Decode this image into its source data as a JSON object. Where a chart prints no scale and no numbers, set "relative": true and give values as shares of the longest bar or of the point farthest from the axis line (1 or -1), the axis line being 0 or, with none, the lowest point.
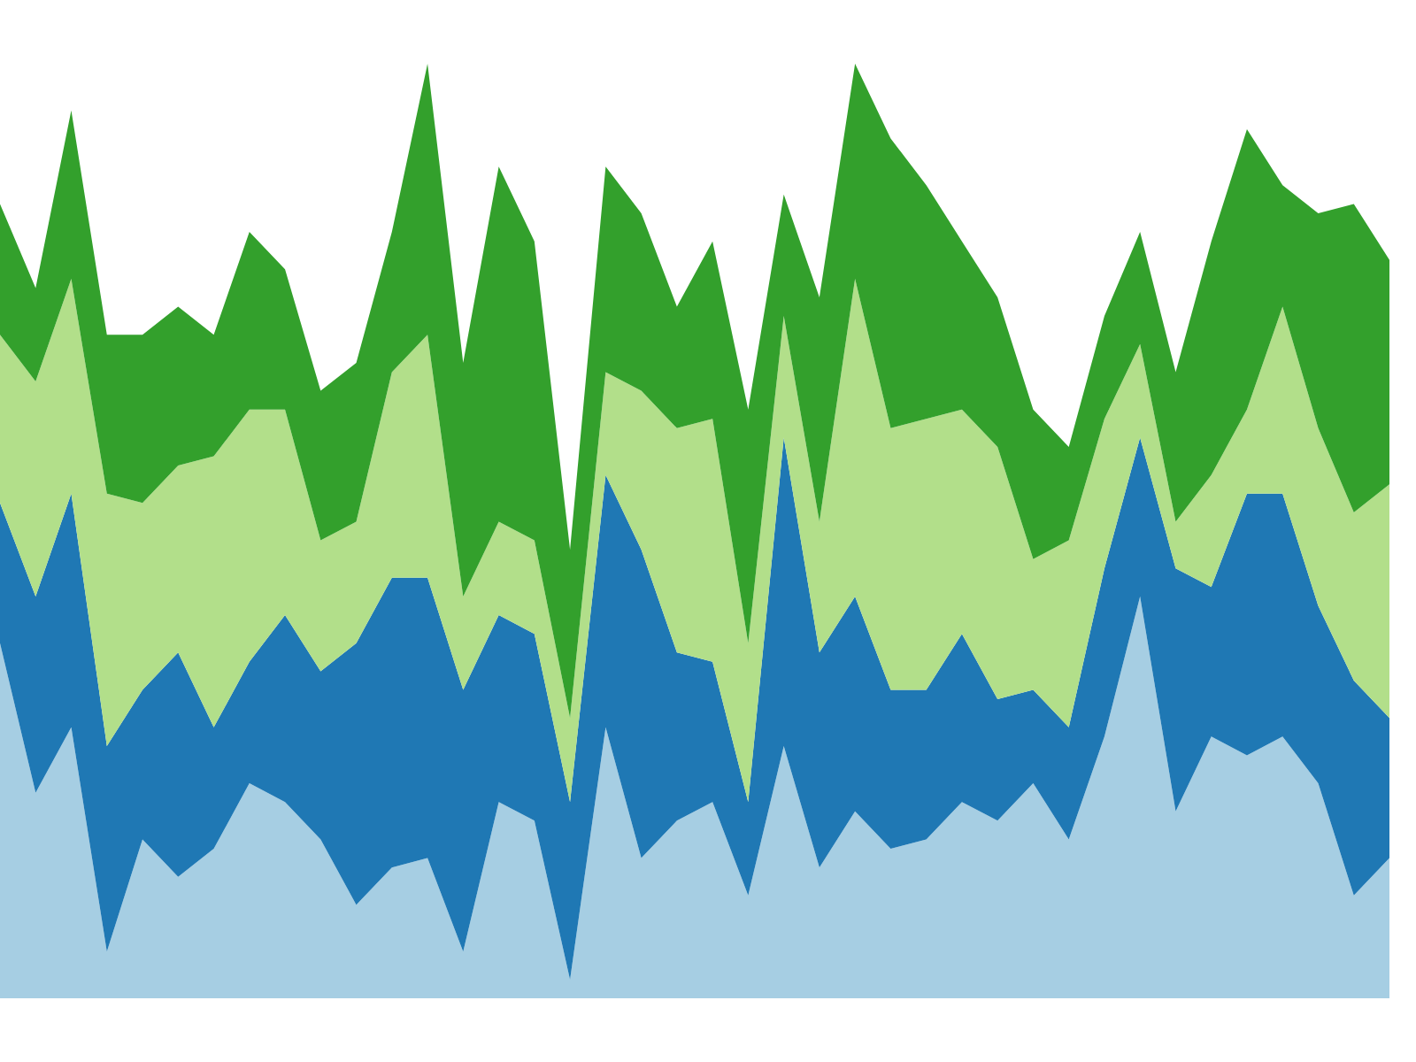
{
  "chart_data": {
    "type": "area",
    "stacked": true,
    "relative": true,
    "categories": [
      null,
      null,
      null,
      null,
      null,
      null,
      null,
      null,
      null,
      null,
      null,
      null,
      null,
      null,
      null,
      null,
      null,
      null,
      null,
      null,
      null,
      null,
      null,
      null,
      null,
      null,
      null,
      null,
      null,
      null,
      null,
      null,
      null,
      null,
      null,
      null,
      null,
      null,
      null,
      null
    ],
    "series": [
      {
        "color": "#a6cee3",
        "values": [
          0.38,
          0.22,
          0.29,
          0.05,
          0.17,
          0.13,
          0.16,
          0.23,
          0.21,
          0.17,
          0.1,
          0.14,
          0.15,
          0.05,
          0.21,
          0.19,
          0.02,
          0.29,
          0.15,
          0.19,
          0.21,
          0.11,
          0.27,
          0.14,
          0.2,
          0.16,
          0.17,
          0.21,
          0.19,
          0.23,
          0.17,
          0.28,
          0.43,
          0.2,
          0.28,
          0.26,
          0.28,
          0.23,
          0.11,
          0.15
        ]
      },
      {
        "color": "#1f78b4",
        "values": [
          0.15,
          0.21,
          0.25,
          0.22,
          0.16,
          0.24,
          0.13,
          0.13,
          0.2,
          0.18,
          0.28,
          0.31,
          0.3,
          0.28,
          0.2,
          0.2,
          0.19,
          0.27,
          0.33,
          0.18,
          0.15,
          0.1,
          0.33,
          0.23,
          0.23,
          0.17,
          0.16,
          0.18,
          0.13,
          0.1,
          0.12,
          0.18,
          0.17,
          0.26,
          0.16,
          0.28,
          0.26,
          0.19,
          0.23,
          0.15
        ]
      },
      {
        "color": "#b2df8a",
        "values": [
          0.18,
          0.23,
          0.23,
          0.27,
          0.2,
          0.2,
          0.29,
          0.27,
          0.22,
          0.14,
          0.13,
          0.22,
          0.26,
          0.1,
          0.1,
          0.1,
          0.09,
          0.11,
          0.17,
          0.24,
          0.26,
          0.17,
          0.13,
          0.14,
          0.34,
          0.28,
          0.29,
          0.24,
          0.27,
          0.14,
          0.2,
          0.16,
          0.1,
          0.05,
          0.12,
          0.09,
          0.2,
          0.19,
          0.18,
          0.25
        ]
      },
      {
        "color": "#33a02c",
        "values": [
          0.14,
          0.1,
          0.18,
          0.17,
          0.18,
          0.17,
          0.13,
          0.19,
          0.15,
          0.16,
          0.17,
          0.15,
          0.29,
          0.25,
          0.38,
          0.32,
          0.18,
          0.22,
          0.19,
          0.13,
          0.19,
          0.25,
          0.13,
          0.24,
          0.23,
          0.31,
          0.25,
          0.18,
          0.16,
          0.16,
          0.1,
          0.11,
          0.12,
          0.16,
          0.25,
          0.3,
          0.13,
          0.23,
          0.33,
          0.24
        ]
      }
    ]
  }
}
